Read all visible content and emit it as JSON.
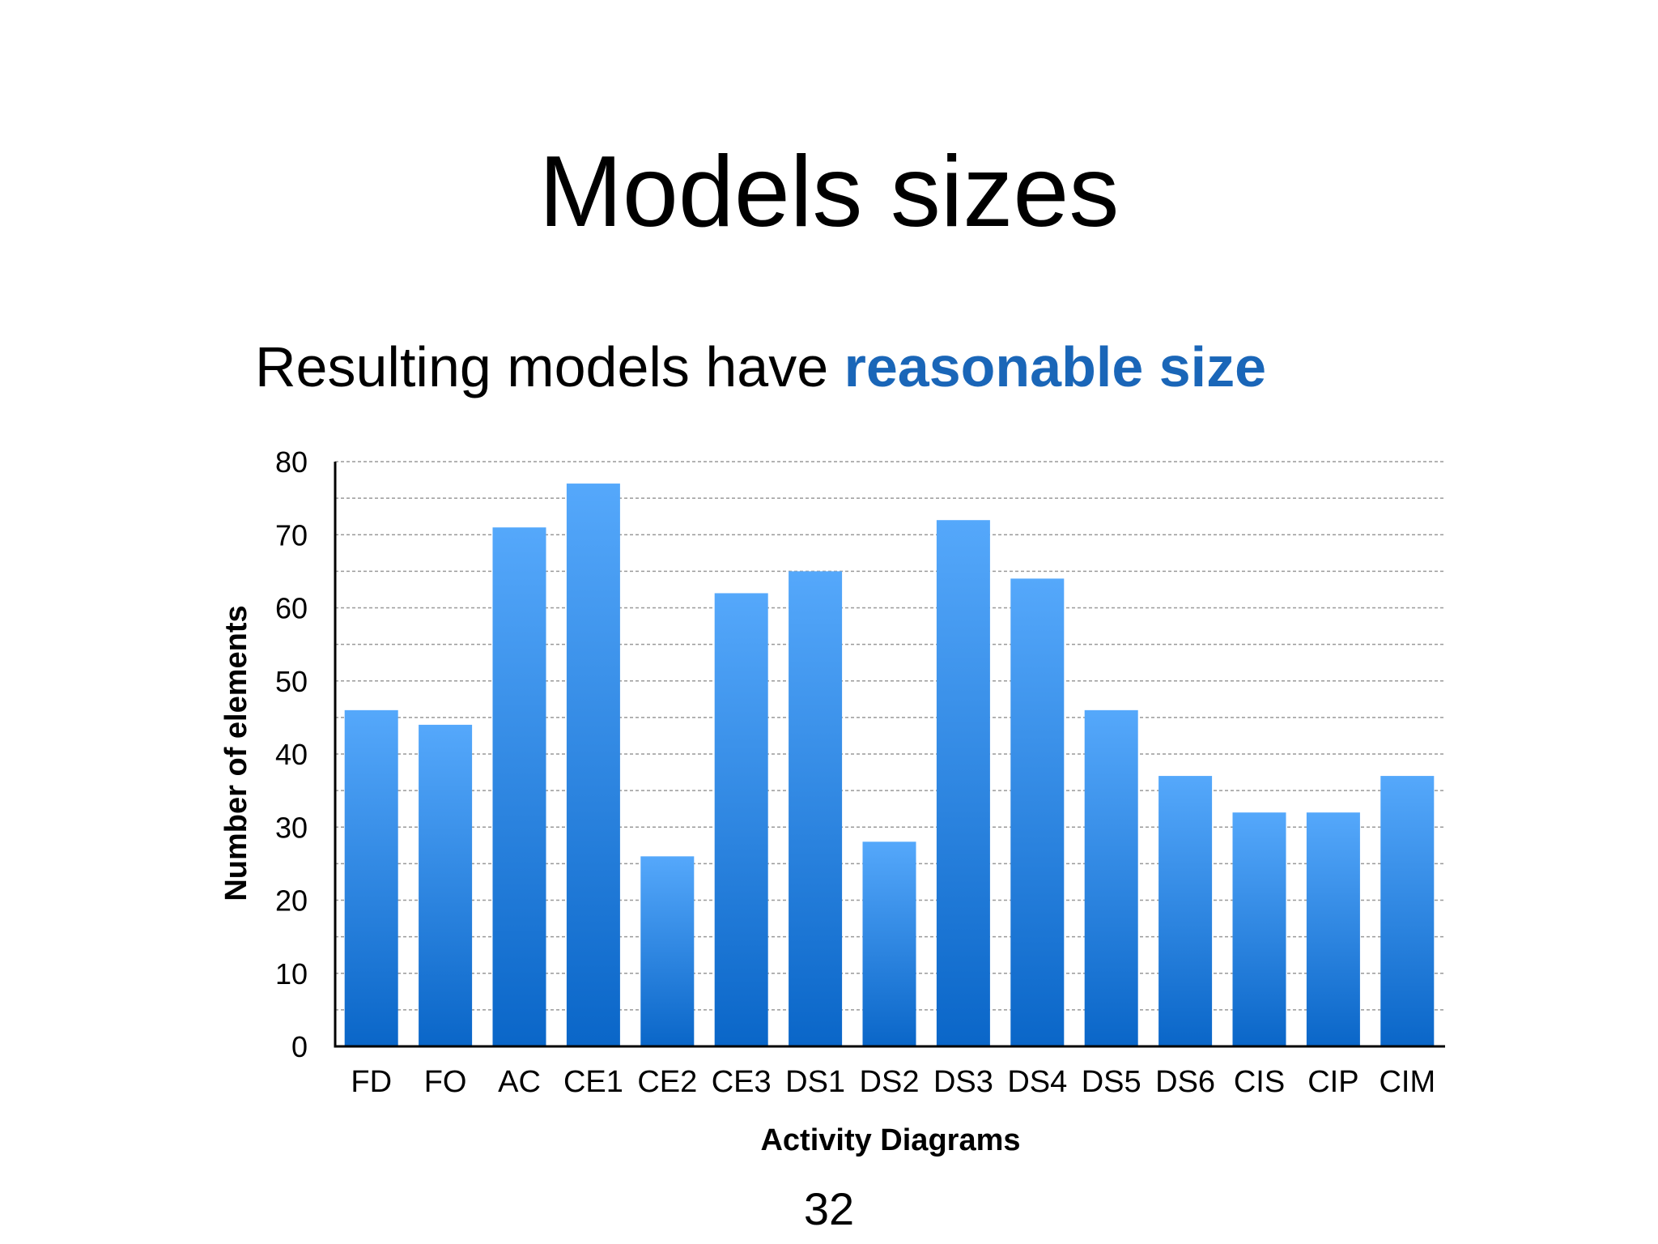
{
  "slide": {
    "title": "Models sizes",
    "subtitle_plain": "Resulting models have ",
    "subtitle_highlight": "reasonable size",
    "page_number": "32"
  },
  "colors": {
    "highlight": "#1a66b8",
    "bar_top": "#55a8fb",
    "bar_bottom": "#0a66c8",
    "grid": "#9a9a9a",
    "axis": "#000000"
  },
  "chart_data": {
    "type": "bar",
    "xlabel": "Activity Diagrams",
    "ylabel": "Number of elements",
    "categories": [
      "FD",
      "FO",
      "AC",
      "CE1",
      "CE2",
      "CE3",
      "DS1",
      "DS2",
      "DS3",
      "DS4",
      "DS5",
      "DS6",
      "CIS",
      "CIP",
      "CIM"
    ],
    "values": [
      46,
      44,
      71,
      77,
      26,
      62,
      65,
      28,
      72,
      64,
      46,
      37,
      32,
      32,
      37
    ],
    "ylim": [
      0,
      80
    ],
    "yticks": [
      0,
      10,
      20,
      30,
      40,
      50,
      60,
      70,
      80
    ],
    "grid": "horizontal dashed, every 5 units",
    "legend": "none"
  }
}
